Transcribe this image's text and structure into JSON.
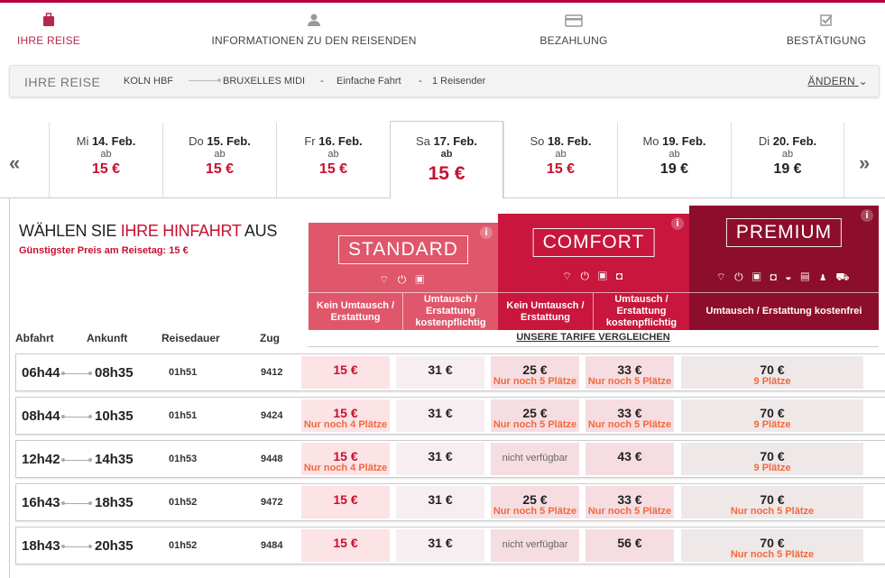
{
  "steps": [
    {
      "label": "IHRE REISE",
      "icon": "suitcase-icon",
      "active": true
    },
    {
      "label": "INFORMATIONEN ZU DEN REISENDEN",
      "icon": "users-icon"
    },
    {
      "label": "BEZAHLUNG",
      "icon": "credit-card-icon"
    },
    {
      "label": "BESTÄTIGUNG",
      "icon": "checkbox-icon"
    }
  ],
  "summary": {
    "title": "IHRE REISE",
    "from": "KOLN HBF",
    "to": "BRUXELLES MIDI",
    "sep1": "-",
    "trip_type": "Einfache Fahrt",
    "sep2": "-",
    "travellers": "1 Reisender",
    "change_label": "ÄNDERN"
  },
  "nav": {
    "prev": "«",
    "next": "»"
  },
  "days": [
    {
      "dow": "Mi",
      "date": "14. Feb.",
      "ab": "ab",
      "price": "15 €",
      "cheapest": true
    },
    {
      "dow": "Do",
      "date": "15. Feb.",
      "ab": "ab",
      "price": "15 €",
      "cheapest": true
    },
    {
      "dow": "Fr",
      "date": "16. Feb.",
      "ab": "ab",
      "price": "15 €",
      "cheapest": true
    },
    {
      "dow": "Sa",
      "date": "17. Feb.",
      "ab": "ab",
      "price": "15 €",
      "cheapest": true,
      "selected": true
    },
    {
      "dow": "So",
      "date": "18. Feb.",
      "ab": "ab",
      "price": "15 €",
      "cheapest": true
    },
    {
      "dow": "Mo",
      "date": "19. Feb.",
      "ab": "ab",
      "price": "19 €",
      "cheapest": false
    },
    {
      "dow": "Di",
      "date": "20. Feb.",
      "ab": "ab",
      "price": "19 €",
      "cheapest": false
    }
  ],
  "heading": {
    "pre": "WÄHLEN SIE ",
    "highlight": "IHRE HINFAHRT",
    "post": " AUS"
  },
  "cheapest_text": "Günstigster Preis am Reisetag: 15 €",
  "fares": {
    "standard": {
      "name": "STANDARD",
      "color": "#e0566a",
      "icons": "wifi plug suitcase",
      "sub1": "Kein Umtausch / Erstattung",
      "sub2": "Umtausch / Erstattung kostenpflichtig"
    },
    "comfort": {
      "name": "COMFORT",
      "color": "#c8163c",
      "icons": "wifi plug suitcase seat",
      "sub1": "Kein Umtausch / Erstattung",
      "sub2": "Umtausch / Erstattung kostenpflichtig"
    },
    "premium": {
      "name": "PREMIUM",
      "color": "#8c0d2c",
      "icons": "wifi plug suitcase seat meal newspaper taxi car",
      "sub": "Umtausch / Erstattung kostenfrei"
    },
    "info": "i"
  },
  "compare_label": "UNSERE TARIFE VERGLEICHEN",
  "columns": {
    "dep": "Abfahrt",
    "arr": "Ankunft",
    "dur": "Reisedauer",
    "train": "Zug"
  },
  "rows": [
    {
      "dep": "06h44",
      "arr": "08h35",
      "dur": "01h51",
      "train": "9412",
      "s1": {
        "price": "15 €"
      },
      "s2": {
        "price": "31 €"
      },
      "c1": {
        "price": "25 €",
        "note": "Nur noch 5 Plätze"
      },
      "c2": {
        "price": "33 €",
        "note": "Nur noch 5 Plätze"
      },
      "p": {
        "price": "70 €",
        "note": "9 Plätze"
      }
    },
    {
      "dep": "08h44",
      "arr": "10h35",
      "dur": "01h51",
      "train": "9424",
      "s1": {
        "price": "15 €",
        "note": "Nur noch 4 Plätze"
      },
      "s2": {
        "price": "31 €"
      },
      "c1": {
        "price": "25 €",
        "note": "Nur noch 5 Plätze"
      },
      "c2": {
        "price": "33 €",
        "note": "Nur noch 5 Plätze"
      },
      "p": {
        "price": "70 €",
        "note": "9 Plätze"
      }
    },
    {
      "dep": "12h42",
      "arr": "14h35",
      "dur": "01h53",
      "train": "9448",
      "s1": {
        "price": "15 €",
        "note": "Nur noch 4 Plätze"
      },
      "s2": {
        "price": "31 €"
      },
      "c1": {
        "na": "nicht verfügbar"
      },
      "c2": {
        "price": "43 €"
      },
      "p": {
        "price": "70 €",
        "note": "9 Plätze"
      }
    },
    {
      "dep": "16h43",
      "arr": "18h35",
      "dur": "01h52",
      "train": "9472",
      "s1": {
        "price": "15 €"
      },
      "s2": {
        "price": "31 €"
      },
      "c1": {
        "price": "25 €",
        "note": "Nur noch 5 Plätze"
      },
      "c2": {
        "price": "33 €",
        "note": "Nur noch 5 Plätze"
      },
      "p": {
        "price": "70 €",
        "note": "Nur noch 5 Plätze"
      }
    },
    {
      "dep": "18h43",
      "arr": "20h35",
      "dur": "01h52",
      "train": "9484",
      "s1": {
        "price": "15 €"
      },
      "s2": {
        "price": "31 €"
      },
      "c1": {
        "na": "nicht verfügbar"
      },
      "c2": {
        "price": "56 €"
      },
      "p": {
        "price": "70 €",
        "note": "Nur noch 5 Plätze"
      }
    }
  ]
}
